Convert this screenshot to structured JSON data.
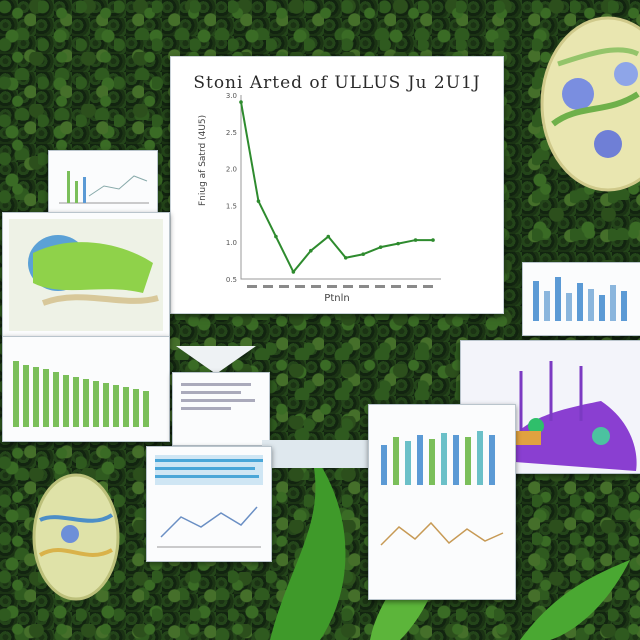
{
  "main_chart": {
    "title": "Stoni Arted of ULLUS Ju 2U1J",
    "ylabel": "Fniug af Satrd (4U5)",
    "xlabel": "Ptnln",
    "y_ticks": [
      "3.0",
      "2.5",
      "2.0",
      "1.5",
      "1.0",
      "0.5"
    ],
    "x_ticks": [
      "",
      "",
      "",
      "",
      "",
      "",
      "",
      "",
      "",
      "",
      "",
      ""
    ]
  },
  "chart_data": {
    "type": "line",
    "title": "Stoni Arted of ULLUS Ju 2U1J",
    "xlabel": "Ptnln",
    "ylabel": "Fniug af Satrd (4U5)",
    "x": [
      0,
      1,
      2,
      3,
      4,
      5,
      6,
      7,
      8,
      9,
      10,
      11
    ],
    "values": [
      3.0,
      1.6,
      1.1,
      0.6,
      0.9,
      1.1,
      0.8,
      0.85,
      0.95,
      1.0,
      1.05,
      1.05
    ],
    "ylim": [
      0.5,
      3.1
    ],
    "grid": false
  },
  "colors": {
    "line": "#2e8b2e",
    "bar_green": "#7bbf5a",
    "bar_blue": "#5b9ad5",
    "violet": "#8a3fd1",
    "leaf": "#3f9a2a"
  }
}
